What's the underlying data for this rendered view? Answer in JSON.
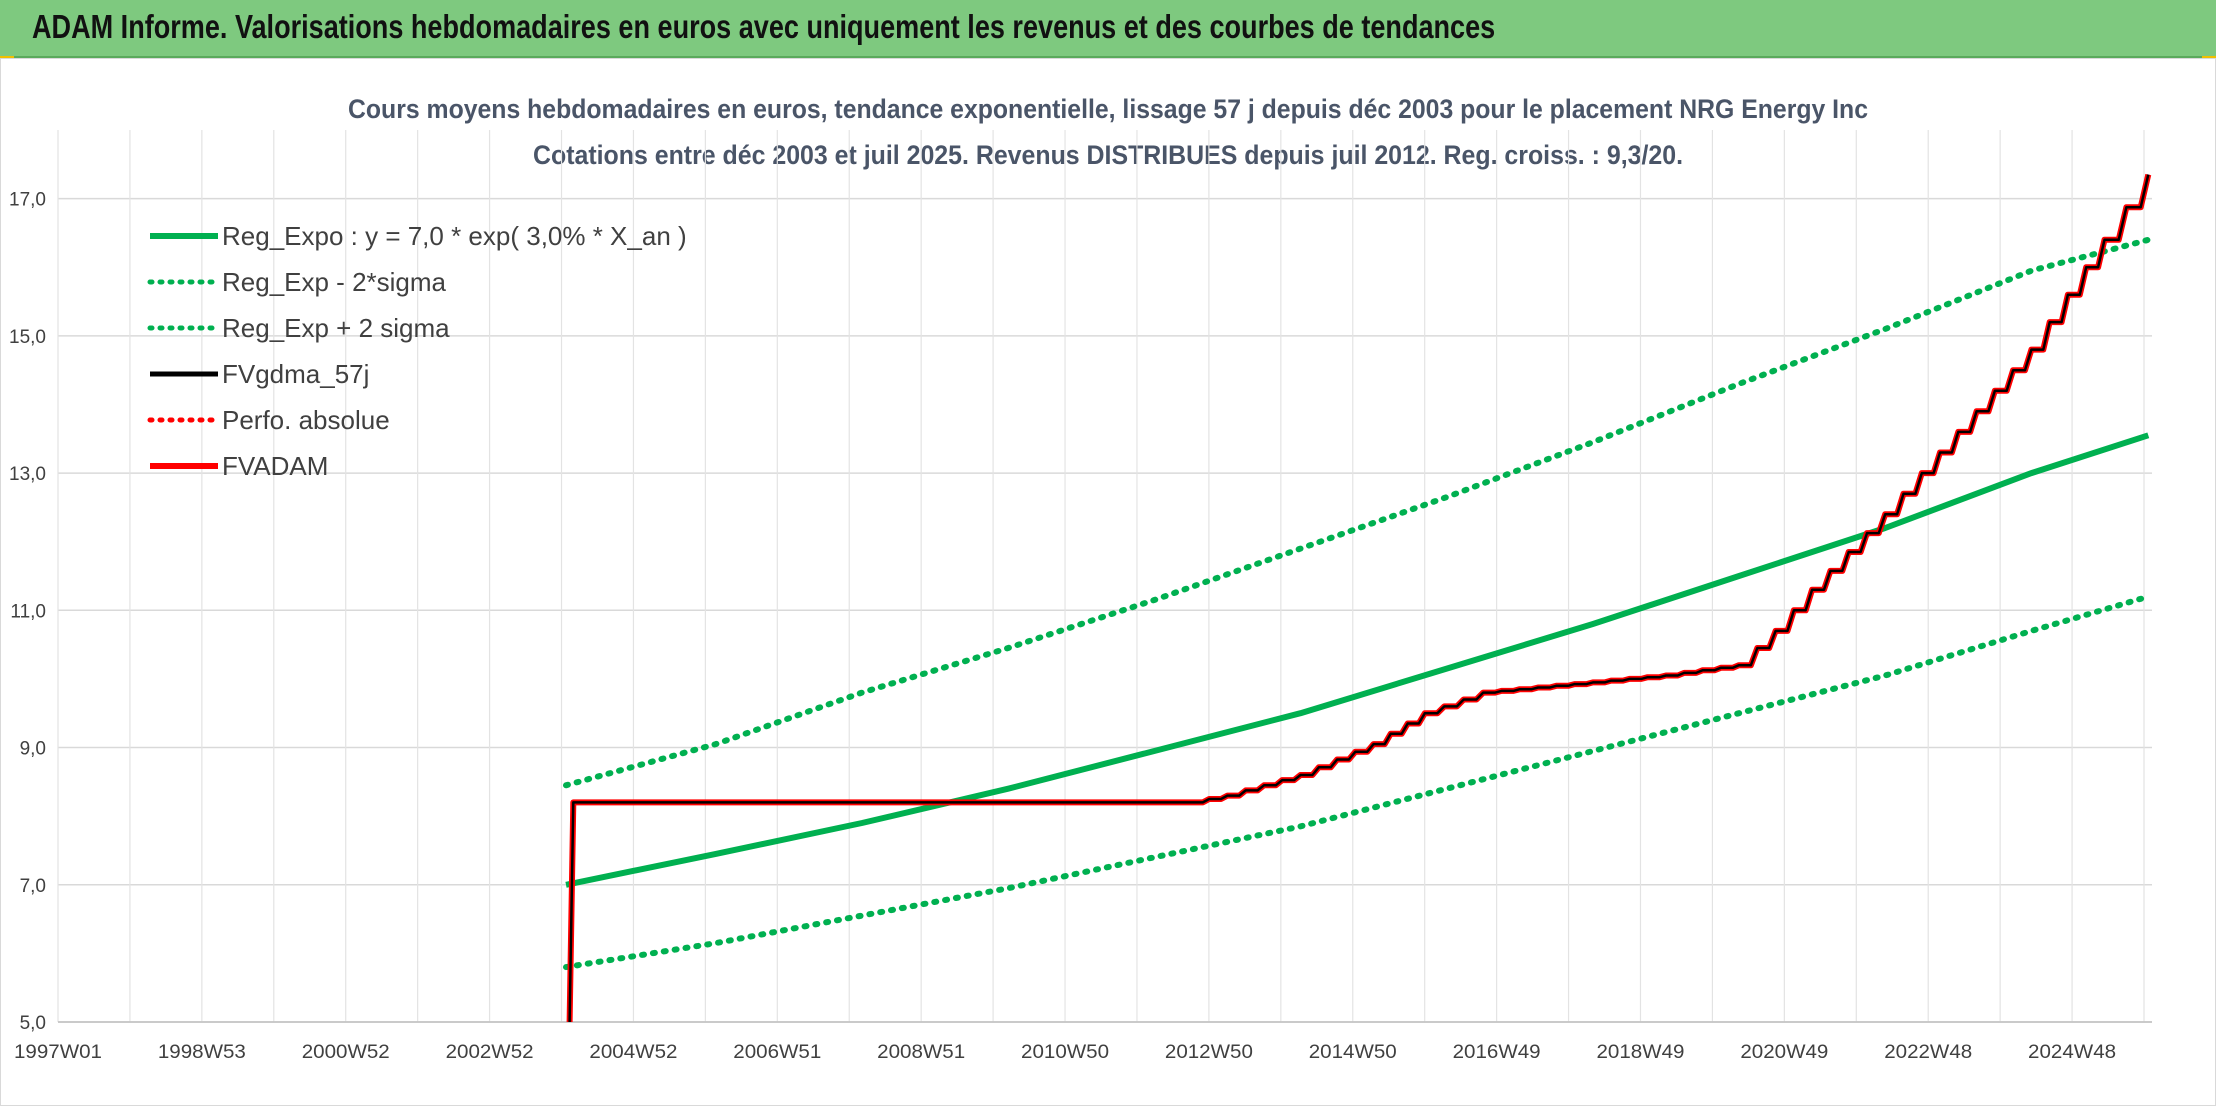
{
  "header": {
    "title": "ADAM Informe. Valorisations hebdomadaires en euros avec uniquement les revenus et des courbes de tendances"
  },
  "chart_data": {
    "type": "line",
    "title": "Cours moyens hebdomadaires en euros, tendance exponentielle, lissage 57 j depuis déc 2003 pour le placement NRG Energy Inc",
    "subtitle": "Cotations entre déc 2003 et juil 2025. Revenus DISTRIBUES depuis juil 2012. Reg. croiss. : 9,3/20.",
    "xlabel": "",
    "ylabel": "",
    "x_tick_labels": [
      "1997W01",
      "1998W53",
      "2000W52",
      "2002W52",
      "2004W52",
      "2006W51",
      "2008W51",
      "2010W50",
      "2012W50",
      "2014W50",
      "2016W49",
      "2018W49",
      "2020W49",
      "2022W48",
      "2024W48"
    ],
    "y_tick_labels": [
      "5,0",
      "7,0",
      "9,0",
      "11,0",
      "13,0",
      "15,0",
      "17,0"
    ],
    "xlim": [
      1997.0,
      2025.65
    ],
    "ylim": [
      5.0,
      18.0
    ],
    "y_ticks": [
      5,
      7,
      9,
      11,
      13,
      15,
      17
    ],
    "grid": true,
    "legend_position": "top-left",
    "series": [
      {
        "name": "Reg_Expo : y = 7,0 * exp( 3,0% *  X_an )",
        "color": "#00b050",
        "style": "solid",
        "x": [
          2003.95,
          2006,
          2008,
          2010,
          2012,
          2014,
          2016,
          2018,
          2020,
          2022,
          2024,
          2025.6
        ],
        "y": [
          7.0,
          7.45,
          7.9,
          8.4,
          8.95,
          9.5,
          10.15,
          10.8,
          11.5,
          12.2,
          13.0,
          13.55
        ]
      },
      {
        "name": "Reg_Exp - 2*sigma",
        "color": "#00b050",
        "style": "dotted",
        "x": [
          2003.95,
          2006,
          2008,
          2010,
          2012,
          2014,
          2016,
          2018,
          2020,
          2022,
          2024,
          2025.6
        ],
        "y": [
          5.8,
          6.15,
          6.55,
          6.95,
          7.4,
          7.85,
          8.4,
          8.95,
          9.5,
          10.05,
          10.7,
          11.2
        ]
      },
      {
        "name": "Reg_Exp + 2 sigma",
        "color": "#00b050",
        "style": "dotted",
        "x": [
          2003.95,
          2006,
          2008,
          2010,
          2012,
          2014,
          2016,
          2018,
          2020,
          2022,
          2024,
          2025.6
        ],
        "y": [
          8.45,
          9.05,
          9.8,
          10.45,
          11.15,
          11.9,
          12.65,
          13.45,
          14.3,
          15.1,
          15.95,
          16.4
        ]
      },
      {
        "name": "FVgdma_57j",
        "color": "#000000",
        "style": "solid",
        "x": [
          2004.0,
          2004.05,
          2012.5,
          2013.0,
          2014.0,
          2015.0,
          2015.7,
          2016.5,
          2018.0,
          2019.0,
          2020.0,
          2020.5,
          2021.0,
          2022.0,
          2023.0,
          2024.0,
          2025.0,
          2025.6
        ],
        "y": [
          5.0,
          8.2,
          8.2,
          8.3,
          8.6,
          9.05,
          9.5,
          9.8,
          9.95,
          10.05,
          10.2,
          10.7,
          11.3,
          12.4,
          13.6,
          14.8,
          16.4,
          17.35
        ]
      },
      {
        "name": "Perfo. absolue",
        "color": "#ff0000",
        "style": "dotted",
        "x": [],
        "y": []
      },
      {
        "name": "FVADAM",
        "color": "#ff0000",
        "style": "solid",
        "x": [
          2004.0,
          2004.05,
          2012.5,
          2013.0,
          2014.0,
          2015.0,
          2015.7,
          2016.5,
          2018.0,
          2019.0,
          2020.0,
          2020.5,
          2021.0,
          2022.0,
          2023.0,
          2024.0,
          2025.0,
          2025.6
        ],
        "y": [
          5.0,
          8.2,
          8.2,
          8.3,
          8.6,
          9.05,
          9.5,
          9.8,
          9.95,
          10.05,
          10.2,
          10.7,
          11.3,
          12.4,
          13.6,
          14.8,
          16.4,
          17.35
        ]
      }
    ]
  }
}
